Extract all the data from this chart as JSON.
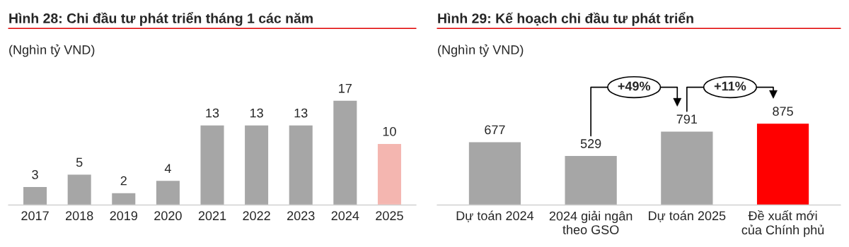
{
  "chart_data": [
    {
      "type": "bar",
      "title": "Hình 28: Chi đầu tư phát triển tháng 1 các năm",
      "subtitle": "(Nghìn tỷ VND)",
      "categories": [
        "2017",
        "2018",
        "2019",
        "2020",
        "2021",
        "2022",
        "2023",
        "2024",
        "2025"
      ],
      "values": [
        3,
        5,
        2,
        4,
        13,
        13,
        13,
        17,
        10
      ],
      "colors": [
        "#a6a6a6",
        "#a6a6a6",
        "#a6a6a6",
        "#a6a6a6",
        "#a6a6a6",
        "#a6a6a6",
        "#a6a6a6",
        "#a6a6a6",
        "#f4b6b0"
      ],
      "data_labels": true,
      "tick_labels": "x",
      "grid": false,
      "legend": false
    },
    {
      "type": "bar",
      "title": "Hình 29: Kế hoạch chi đầu tư phát triển",
      "subtitle": "(Nghìn tỷ VND)",
      "categories": [
        "Dự toán 2024",
        "2024 giải ngân\ntheo GSO",
        "Dự toán 2025",
        "Đề xuất mới\ncủa Chính phủ"
      ],
      "values": [
        677,
        529,
        791,
        875
      ],
      "colors": [
        "#a6a6a6",
        "#a6a6a6",
        "#a6a6a6",
        "#ff0000"
      ],
      "data_labels": true,
      "tick_labels": "x",
      "grid": false,
      "legend": false,
      "annotations": [
        "+49%",
        "+11%"
      ]
    }
  ]
}
